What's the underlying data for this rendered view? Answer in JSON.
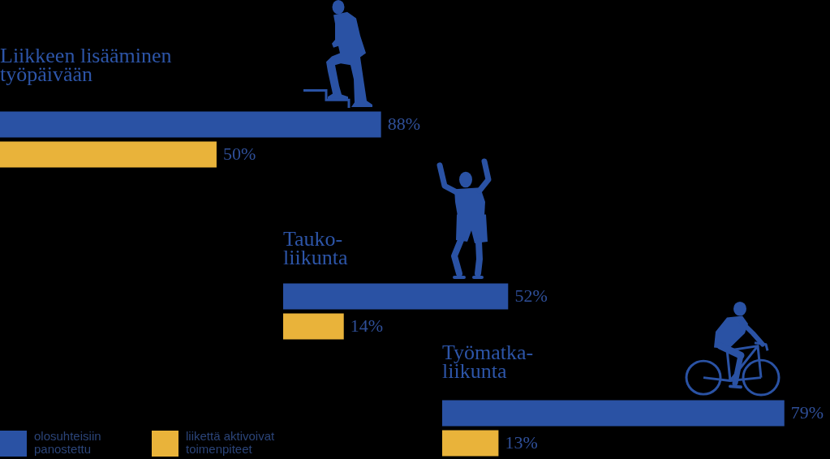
{
  "chart_data": [
    {
      "type": "bar",
      "orientation": "horizontal",
      "categories": [
        "Liikkeen lisääminen työpäivään"
      ],
      "series": [
        {
          "color": "#2a52a4",
          "values": [
            88
          ],
          "value_labels": [
            "88%"
          ]
        },
        {
          "color": "#e9b33a",
          "values": [
            50
          ],
          "value_labels": [
            "50%"
          ]
        }
      ],
      "tick_labels": "y"
    },
    {
      "type": "bar",
      "orientation": "horizontal",
      "categories": [
        "Tauko-liikunta"
      ],
      "series": [
        {
          "color": "#2a52a4",
          "values": [
            52
          ],
          "value_labels": [
            "52%"
          ]
        },
        {
          "color": "#e9b33a",
          "values": [
            14
          ],
          "value_labels": [
            "14%"
          ]
        }
      ],
      "tick_labels": "y"
    },
    {
      "type": "bar",
      "orientation": "horizontal",
      "categories": [
        "Työmatka-liikunta"
      ],
      "series": [
        {
          "name": "olosuhteisiin panostettu",
          "color": "#2a52a4",
          "values": [
            79
          ],
          "value_labels": [
            "79%"
          ]
        },
        {
          "name": "liikettä aktivoivat toimenpiteet",
          "color": "#e9b33a",
          "values": [
            13
          ],
          "value_labels": [
            "13%"
          ]
        }
      ],
      "tick_labels": "y",
      "legend": "bottom left"
    }
  ]
}
